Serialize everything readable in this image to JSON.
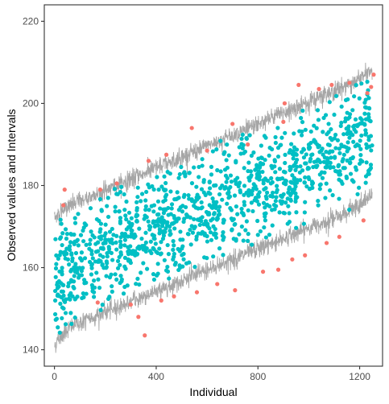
{
  "chart_data": {
    "type": "scatter",
    "title": "",
    "xlabel": "Individual",
    "ylabel": "Observed values and Intervals",
    "xlim": [
      -40,
      1290
    ],
    "ylim": [
      136,
      224
    ],
    "x_ticks": [
      0,
      400,
      800,
      1200
    ],
    "y_ticks": [
      140,
      160,
      180,
      200,
      220
    ],
    "x_tick_labels": [
      "0",
      "400",
      "800",
      "1200"
    ],
    "y_tick_labels": [
      "140",
      "160",
      "180",
      "200",
      "220"
    ],
    "grid": false,
    "legend": "none",
    "n_individuals": 1250,
    "interval": {
      "color": "#A6A6A6",
      "lower_start": 144,
      "lower_end": 176,
      "upper_start": 173.5,
      "upper_end": 207
    },
    "series": [
      {
        "color": "#00BFC4",
        "description_points": "observations within interval",
        "approx_count": 1160
      },
      {
        "color": "#F8766D",
        "description_points": "observations outside interval",
        "points": [
          [
            35,
            175.2
          ],
          [
            40,
            179.0
          ],
          [
            170,
            151.5
          ],
          [
            180,
            179.0
          ],
          [
            245,
            180.5
          ],
          [
            300,
            151.0
          ],
          [
            330,
            148.0
          ],
          [
            355,
            143.5
          ],
          [
            370,
            186.0
          ],
          [
            420,
            152.0
          ],
          [
            440,
            187.5
          ],
          [
            470,
            153.0
          ],
          [
            540,
            194.0
          ],
          [
            560,
            154.0
          ],
          [
            600,
            188.5
          ],
          [
            640,
            156.0
          ],
          [
            700,
            195.0
          ],
          [
            710,
            154.5
          ],
          [
            760,
            190.0
          ],
          [
            820,
            159.0
          ],
          [
            880,
            159.5
          ],
          [
            900,
            195.5
          ],
          [
            905,
            200.0
          ],
          [
            935,
            162.0
          ],
          [
            960,
            204.5
          ],
          [
            985,
            163.0
          ],
          [
            1040,
            203.5
          ],
          [
            1070,
            166.0
          ],
          [
            1090,
            204.5
          ],
          [
            1120,
            167.5
          ],
          [
            1160,
            205.0
          ],
          [
            1215,
            171.5
          ],
          [
            1230,
            202.5
          ],
          [
            1245,
            204.0
          ],
          [
            1255,
            207.0
          ]
        ]
      }
    ]
  }
}
